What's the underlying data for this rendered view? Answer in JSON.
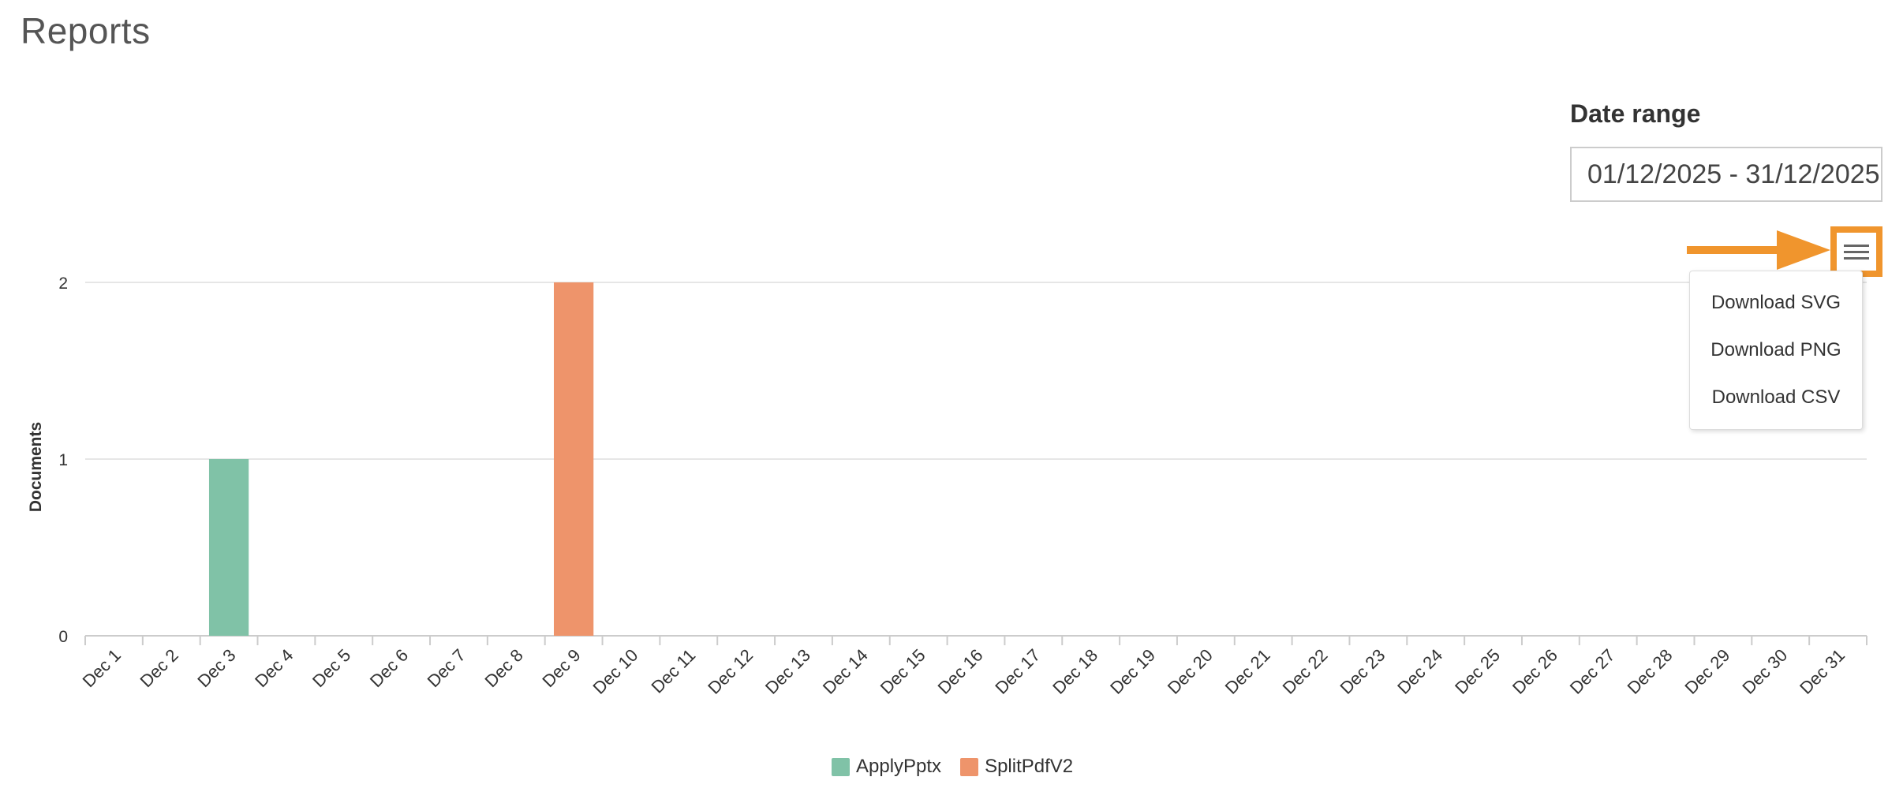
{
  "page": {
    "title": "Reports"
  },
  "date_range": {
    "label": "Date range",
    "value": "01/12/2025 - 31/12/2025"
  },
  "export_menu": {
    "button_icon": "hamburger-menu-icon",
    "items": [
      "Download SVG",
      "Download PNG",
      "Download CSV"
    ],
    "highlight_color": "#f0952d"
  },
  "chart_data": {
    "type": "bar",
    "ylabel": "Documents",
    "xlabel": "",
    "ylim": [
      0,
      2
    ],
    "yticks": [
      0,
      1,
      2
    ],
    "grid": true,
    "legend_position": "bottom-center",
    "categories": [
      "Dec 1",
      "Dec 2",
      "Dec 3",
      "Dec 4",
      "Dec 5",
      "Dec 6",
      "Dec 7",
      "Dec 8",
      "Dec 9",
      "Dec 10",
      "Dec 11",
      "Dec 12",
      "Dec 13",
      "Dec 14",
      "Dec 15",
      "Dec 16",
      "Dec 17",
      "Dec 18",
      "Dec 19",
      "Dec 20",
      "Dec 21",
      "Dec 22",
      "Dec 23",
      "Dec 24",
      "Dec 25",
      "Dec 26",
      "Dec 27",
      "Dec 28",
      "Dec 29",
      "Dec 30",
      "Dec 31"
    ],
    "series": [
      {
        "name": "ApplyPptx",
        "color": "#80c2a7",
        "values": [
          0,
          0,
          1,
          0,
          0,
          0,
          0,
          0,
          0,
          0,
          0,
          0,
          0,
          0,
          0,
          0,
          0,
          0,
          0,
          0,
          0,
          0,
          0,
          0,
          0,
          0,
          0,
          0,
          0,
          0,
          0
        ]
      },
      {
        "name": "SplitPdfV2",
        "color": "#ee946b",
        "values": [
          0,
          0,
          0,
          0,
          0,
          0,
          0,
          0,
          2,
          0,
          0,
          0,
          0,
          0,
          0,
          0,
          0,
          0,
          0,
          0,
          0,
          0,
          0,
          0,
          0,
          0,
          0,
          0,
          0,
          0,
          0
        ]
      }
    ]
  }
}
